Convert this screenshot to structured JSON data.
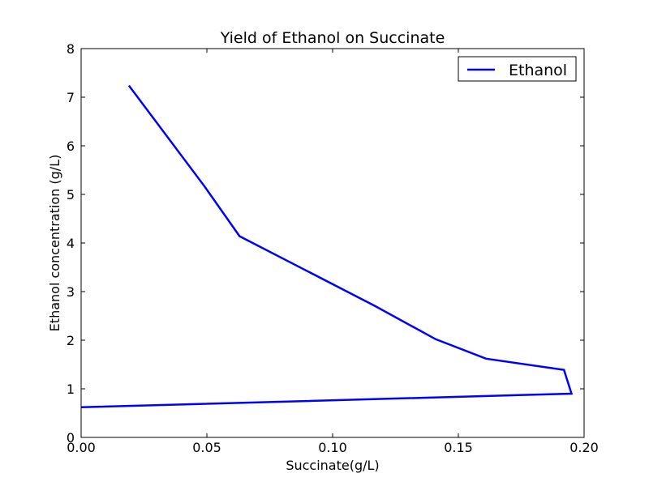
{
  "chart_data": {
    "type": "line",
    "title": "Yield of Ethanol on Succinate",
    "xlabel": "Succinate(g/L)",
    "ylabel": "Ethanol concentration (g/L)",
    "xlim": [
      0.0,
      0.2
    ],
    "ylim": [
      0,
      8
    ],
    "xticks": [
      "0.00",
      "0.05",
      "0.10",
      "0.15",
      "0.20"
    ],
    "yticks": [
      "0",
      "1",
      "2",
      "3",
      "4",
      "5",
      "6",
      "7",
      "8"
    ],
    "grid": false,
    "legend_position": "top-right",
    "series": [
      {
        "name": "Ethanol",
        "color": "#0000ff",
        "x": [
          0.0,
          0.195,
          0.192,
          0.161,
          0.141,
          0.117,
          0.09,
          0.063,
          0.049,
          0.019
        ],
        "y": [
          0.62,
          0.9,
          1.39,
          1.62,
          2.02,
          2.7,
          3.42,
          4.14,
          5.17,
          7.24
        ]
      }
    ]
  }
}
